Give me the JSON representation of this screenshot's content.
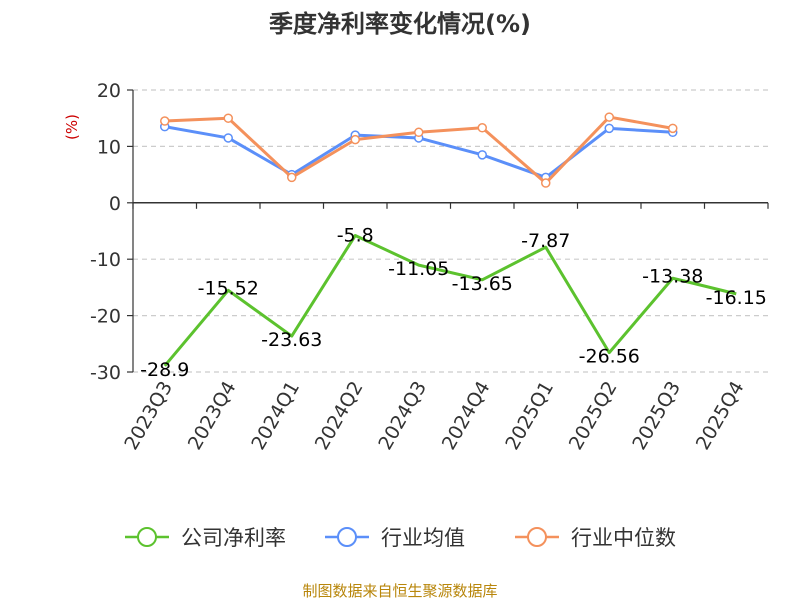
{
  "chart_data": {
    "type": "line",
    "title": "季度净利率变化情况(%)",
    "ylabel": "(%)",
    "categories": [
      "2023Q3",
      "2023Q4",
      "2024Q1",
      "2024Q2",
      "2024Q3",
      "2024Q4",
      "2025Q1",
      "2025Q2",
      "2025Q3",
      "2025Q4"
    ],
    "ylim": [
      -30,
      20
    ],
    "yticks": [
      20,
      10,
      0,
      -10,
      -20,
      -30
    ],
    "grid": "horizontal-dashed",
    "legend_position": "bottom",
    "series": [
      {
        "name": "公司净利率",
        "color": "#5cc22e",
        "values": [
          -28.9,
          -15.52,
          -23.63,
          -5.8,
          -11.05,
          -13.65,
          -7.87,
          -26.56,
          -13.38,
          -16.15
        ],
        "labels": [
          "-28.9",
          "-15.52",
          "-23.63",
          "-5.8",
          "-11.05",
          "-13.65",
          "-7.87",
          "-26.56",
          "-13.38",
          "-16.15"
        ]
      },
      {
        "name": "行业均值",
        "color": "#5b8ff9",
        "values": [
          13.5,
          11.5,
          5.0,
          12.0,
          11.5,
          8.5,
          4.5,
          13.2,
          12.5,
          null
        ]
      },
      {
        "name": "行业中位数",
        "color": "#f4915c",
        "values": [
          14.5,
          15.0,
          4.5,
          11.2,
          12.5,
          13.3,
          3.5,
          15.2,
          13.2,
          null
        ]
      }
    ]
  },
  "source": "制图数据来自恒生聚源数据库"
}
